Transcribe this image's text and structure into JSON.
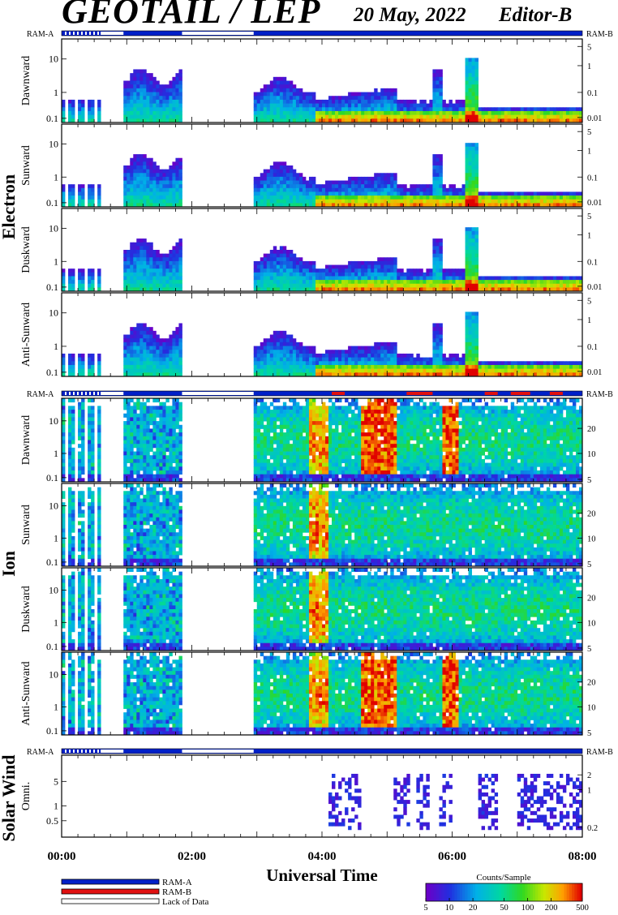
{
  "header": {
    "instrument": "GEOTAIL / LEP",
    "date": "20 May, 2022",
    "editor": "Editor-B"
  },
  "groups": {
    "electron": "Electron",
    "ion": "Ion",
    "solar_wind": "Solar Wind"
  },
  "ram_labels": {
    "a": "RAM-A",
    "b": "RAM-B"
  },
  "x_axis": {
    "label": "Universal Time",
    "ticks": [
      "00:00",
      "02:00",
      "04:00",
      "06:00",
      "08:00"
    ]
  },
  "legend": {
    "items": [
      {
        "label": "RAM-A",
        "color": "#0020c8"
      },
      {
        "label": "RAM-B",
        "color": "#e01010"
      },
      {
        "label": "Lack of Data",
        "color": "#ffffff"
      }
    ]
  },
  "colorbar": {
    "title": "Counts/Sample",
    "ticks": [
      "5",
      "10",
      "20",
      "50",
      "100",
      "200",
      "500"
    ]
  },
  "chart_data": {
    "type": "heatmap",
    "x_range_hours": [
      0,
      8
    ],
    "colorscale_counts": [
      5,
      500
    ],
    "data_gaps_hours": [
      [
        0.6,
        0.95
      ],
      [
        1.85,
        2.95
      ]
    ],
    "panels": [
      {
        "group": "Electron",
        "label": "Dawnward",
        "left_ticks": [
          "10",
          "1",
          "0.1"
        ],
        "right_ticks": [
          "5",
          "1",
          "0.1",
          "0.01"
        ],
        "mode": "electron",
        "ram_b_hours": []
      },
      {
        "group": "Electron",
        "label": "Sunward",
        "left_ticks": [
          "10",
          "1",
          "0.1"
        ],
        "right_ticks": [
          "5",
          "1",
          "0.1",
          "0.01"
        ],
        "mode": "electron",
        "ram_b_hours": []
      },
      {
        "group": "Electron",
        "label": "Duskward",
        "left_ticks": [
          "10",
          "1",
          "0.1"
        ],
        "right_ticks": [
          "5",
          "1",
          "0.1",
          "0.01"
        ],
        "mode": "electron",
        "ram_b_hours": []
      },
      {
        "group": "Electron",
        "label": "Anti-Sunward",
        "left_ticks": [
          "10",
          "1",
          "0.1"
        ],
        "right_ticks": [
          "5",
          "1",
          "0.1",
          "0.01"
        ],
        "mode": "electron",
        "ram_b_hours": []
      },
      {
        "group": "Ion",
        "label": "Dawnward",
        "left_ticks": [
          "10",
          "1",
          "0.1"
        ],
        "right_ticks": [
          "20",
          "10",
          "5"
        ],
        "mode": "ion",
        "ram_b_hours": [
          [
            4.15,
            4.35
          ],
          [
            5.3,
            5.7
          ],
          [
            6.5,
            6.7
          ],
          [
            6.9,
            7.2
          ],
          [
            7.5,
            7.7
          ]
        ]
      },
      {
        "group": "Ion",
        "label": "Sunward",
        "left_ticks": [
          "10",
          "1",
          "0.1"
        ],
        "right_ticks": [
          "20",
          "10",
          "5"
        ],
        "mode": "ion",
        "ram_b_hours": []
      },
      {
        "group": "Ion",
        "label": "Duskward",
        "left_ticks": [
          "10",
          "1",
          "0.1"
        ],
        "right_ticks": [
          "20",
          "10",
          "5"
        ],
        "mode": "ion",
        "ram_b_hours": []
      },
      {
        "group": "Ion",
        "label": "Anti-Sunward",
        "left_ticks": [
          "10",
          "1",
          "0.1"
        ],
        "right_ticks": [
          "20",
          "10",
          "5"
        ],
        "mode": "ion",
        "ram_b_hours": []
      },
      {
        "group": "Solar Wind",
        "label": "Omni.",
        "left_ticks": [
          "5",
          "1",
          "0.5"
        ],
        "right_ticks": [
          "2",
          "1",
          "0.2"
        ],
        "mode": "sw",
        "ram_b_hours": []
      }
    ]
  }
}
